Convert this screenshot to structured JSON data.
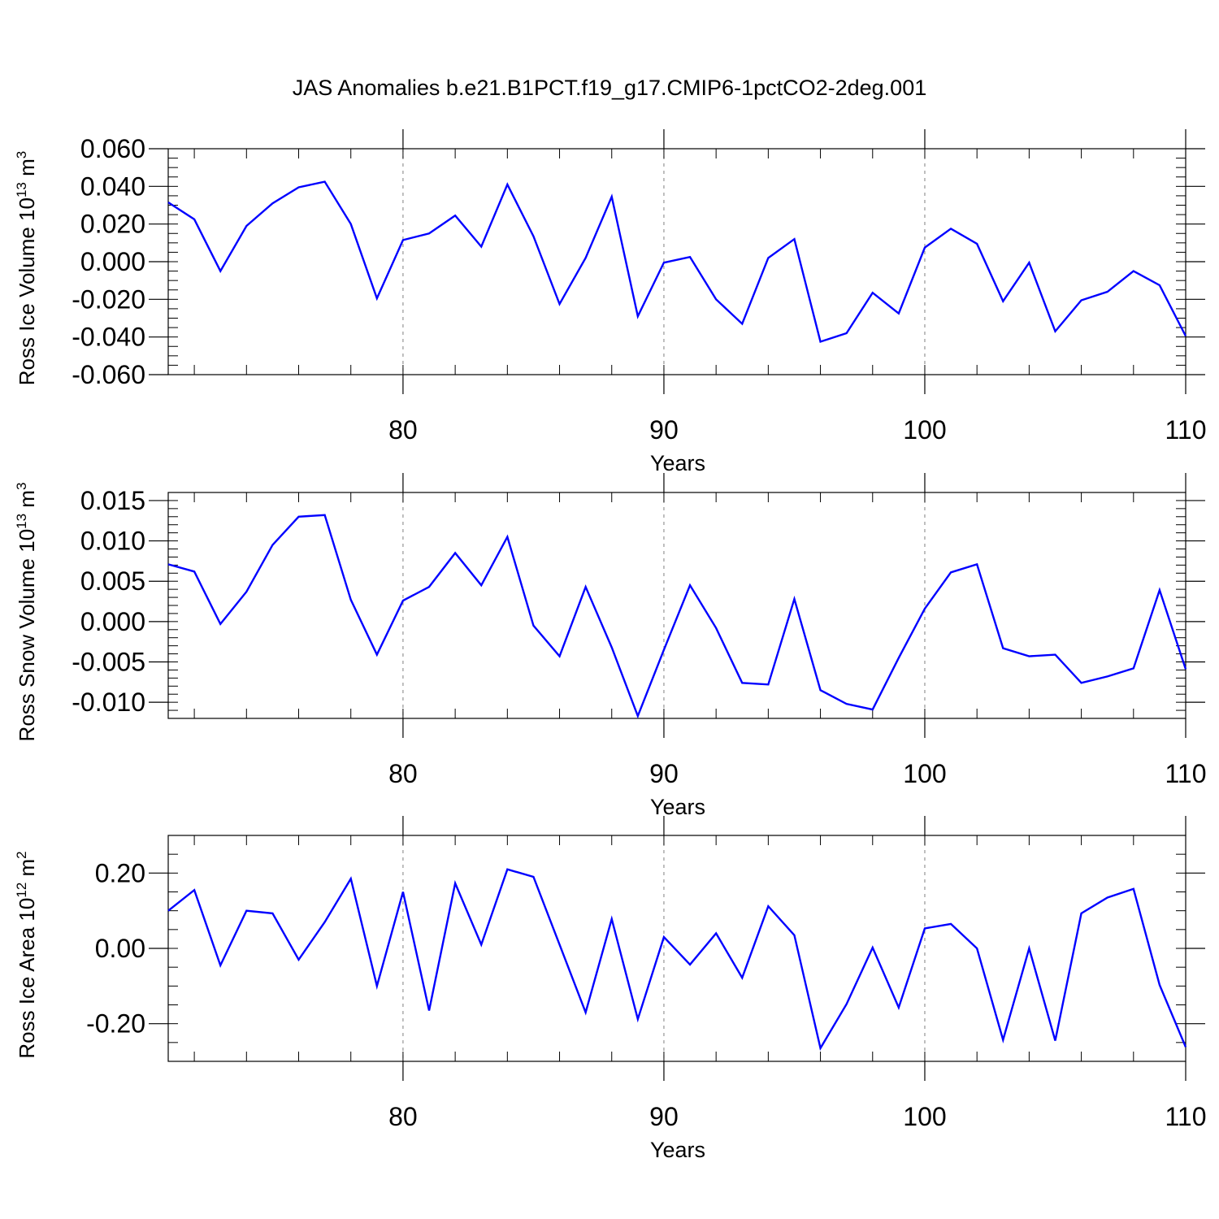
{
  "title": "JAS Anomalies b.e21.B1PCT.f19_g17.CMIP6-1pctCO2-2deg.001",
  "colors": {
    "line": "#0000ff",
    "axis": "#000000",
    "grid": "#808080",
    "background": "#ffffff"
  },
  "chart_data": [
    {
      "type": "line",
      "ylabel": "Ross Ice Volume 10",
      "ylabel_exp": "13",
      "ylabel_unit": "m",
      "ylabel_unit_exp": "3",
      "xlabel": "Years",
      "xlim": [
        71,
        110
      ],
      "ylim": [
        -0.06,
        0.06
      ],
      "yticks": [
        -0.06,
        -0.04,
        -0.02,
        0.0,
        0.02,
        0.04,
        0.06
      ],
      "ytick_labels": [
        "-0.060",
        "-0.040",
        "-0.020",
        "0.000",
        "0.020",
        "0.040",
        "0.060"
      ],
      "yminor_step": 0.005,
      "xticks": [
        80,
        90,
        100,
        110
      ],
      "xtick_labels": [
        "80",
        "90",
        "100",
        "110"
      ],
      "xminor_step": 2,
      "grid_x": [
        80,
        90,
        100
      ],
      "series": [
        {
          "x": [
            71,
            72,
            73,
            74,
            75,
            76,
            77,
            78,
            79,
            80,
            81,
            82,
            83,
            84,
            85,
            86,
            87,
            88,
            89,
            90,
            91,
            92,
            93,
            94,
            95,
            96,
            97,
            98,
            99,
            100,
            101,
            102,
            103,
            104,
            105,
            106,
            107,
            108,
            109,
            110
          ],
          "values": [
            0.0315,
            0.0225,
            -0.005,
            0.019,
            0.031,
            0.0395,
            0.0425,
            0.02,
            -0.0195,
            0.0115,
            0.015,
            0.0245,
            0.008,
            0.041,
            0.0135,
            -0.0225,
            0.002,
            0.0345,
            -0.029,
            -0.0005,
            0.0025,
            -0.02,
            -0.033,
            0.002,
            0.012,
            -0.0425,
            -0.038,
            -0.0165,
            -0.0275,
            0.0075,
            0.0175,
            0.0095,
            -0.021,
            -0.0005,
            -0.037,
            -0.0205,
            -0.016,
            -0.005,
            -0.0125,
            -0.0395
          ]
        }
      ]
    },
    {
      "type": "line",
      "ylabel": "Ross Snow Volume 10",
      "ylabel_exp": "13",
      "ylabel_unit": "m",
      "ylabel_unit_exp": "3",
      "xlabel": "Years",
      "xlim": [
        71,
        110
      ],
      "ylim": [
        -0.012,
        0.016
      ],
      "yticks": [
        -0.01,
        -0.005,
        0.0,
        0.005,
        0.01,
        0.015
      ],
      "ytick_labels": [
        "-0.010",
        "-0.005",
        "0.000",
        "0.005",
        "0.010",
        "0.015"
      ],
      "yminor_step": 0.001,
      "xticks": [
        80,
        90,
        100,
        110
      ],
      "xtick_labels": [
        "80",
        "90",
        "100",
        "110"
      ],
      "xminor_step": 2,
      "grid_x": [
        80,
        90,
        100
      ],
      "series": [
        {
          "x": [
            71,
            72,
            73,
            74,
            75,
            76,
            77,
            78,
            79,
            80,
            81,
            82,
            83,
            84,
            85,
            86,
            87,
            88,
            89,
            90,
            91,
            92,
            93,
            94,
            95,
            96,
            97,
            98,
            99,
            100,
            101,
            102,
            103,
            104,
            105,
            106,
            107,
            108,
            109,
            110
          ],
          "values": [
            0.0071,
            0.0062,
            -0.0003,
            0.0037,
            0.0095,
            0.013,
            0.0132,
            0.0027,
            -0.0041,
            0.0026,
            0.0043,
            0.0085,
            0.0045,
            0.0105,
            -0.0005,
            -0.0043,
            0.0043,
            -0.0032,
            -0.0117,
            -0.0035,
            0.0045,
            -0.0008,
            -0.0076,
            -0.0078,
            0.0028,
            -0.0085,
            -0.0102,
            -0.0109,
            -0.0045,
            0.0016,
            0.0061,
            0.0071,
            -0.0033,
            -0.0043,
            -0.0041,
            -0.0076,
            -0.0068,
            -0.0058,
            0.0039,
            -0.0059
          ]
        }
      ]
    },
    {
      "type": "line",
      "ylabel": "Ross Ice Area 10",
      "ylabel_exp": "12",
      "ylabel_unit": "m",
      "ylabel_unit_exp": "2",
      "xlabel": "Years",
      "xlim": [
        71,
        110
      ],
      "ylim": [
        -0.3,
        0.3
      ],
      "yticks": [
        -0.2,
        0.0,
        0.2
      ],
      "ytick_labels": [
        "-0.20",
        "0.00",
        "0.20"
      ],
      "yminor_step": 0.05,
      "xticks": [
        80,
        90,
        100,
        110
      ],
      "xtick_labels": [
        "80",
        "90",
        "100",
        "110"
      ],
      "xminor_step": 2,
      "grid_x": [
        80,
        90,
        100
      ],
      "series": [
        {
          "x": [
            71,
            72,
            73,
            74,
            75,
            76,
            77,
            78,
            79,
            80,
            81,
            82,
            83,
            84,
            85,
            86,
            87,
            88,
            89,
            90,
            91,
            92,
            93,
            94,
            95,
            96,
            97,
            98,
            99,
            100,
            101,
            102,
            103,
            104,
            105,
            106,
            107,
            108,
            109,
            110
          ],
          "values": [
            0.1,
            0.155,
            -0.045,
            0.1,
            0.093,
            -0.03,
            0.07,
            0.185,
            -0.1,
            0.15,
            -0.165,
            0.173,
            0.01,
            0.21,
            0.19,
            0.01,
            -0.17,
            0.078,
            -0.188,
            0.03,
            -0.043,
            0.04,
            -0.078,
            0.112,
            0.035,
            -0.265,
            -0.148,
            0.002,
            -0.157,
            0.053,
            0.065,
            0.0,
            -0.243,
            0.0,
            -0.245,
            0.093,
            0.135,
            0.158,
            -0.097,
            -0.262
          ]
        }
      ]
    }
  ]
}
